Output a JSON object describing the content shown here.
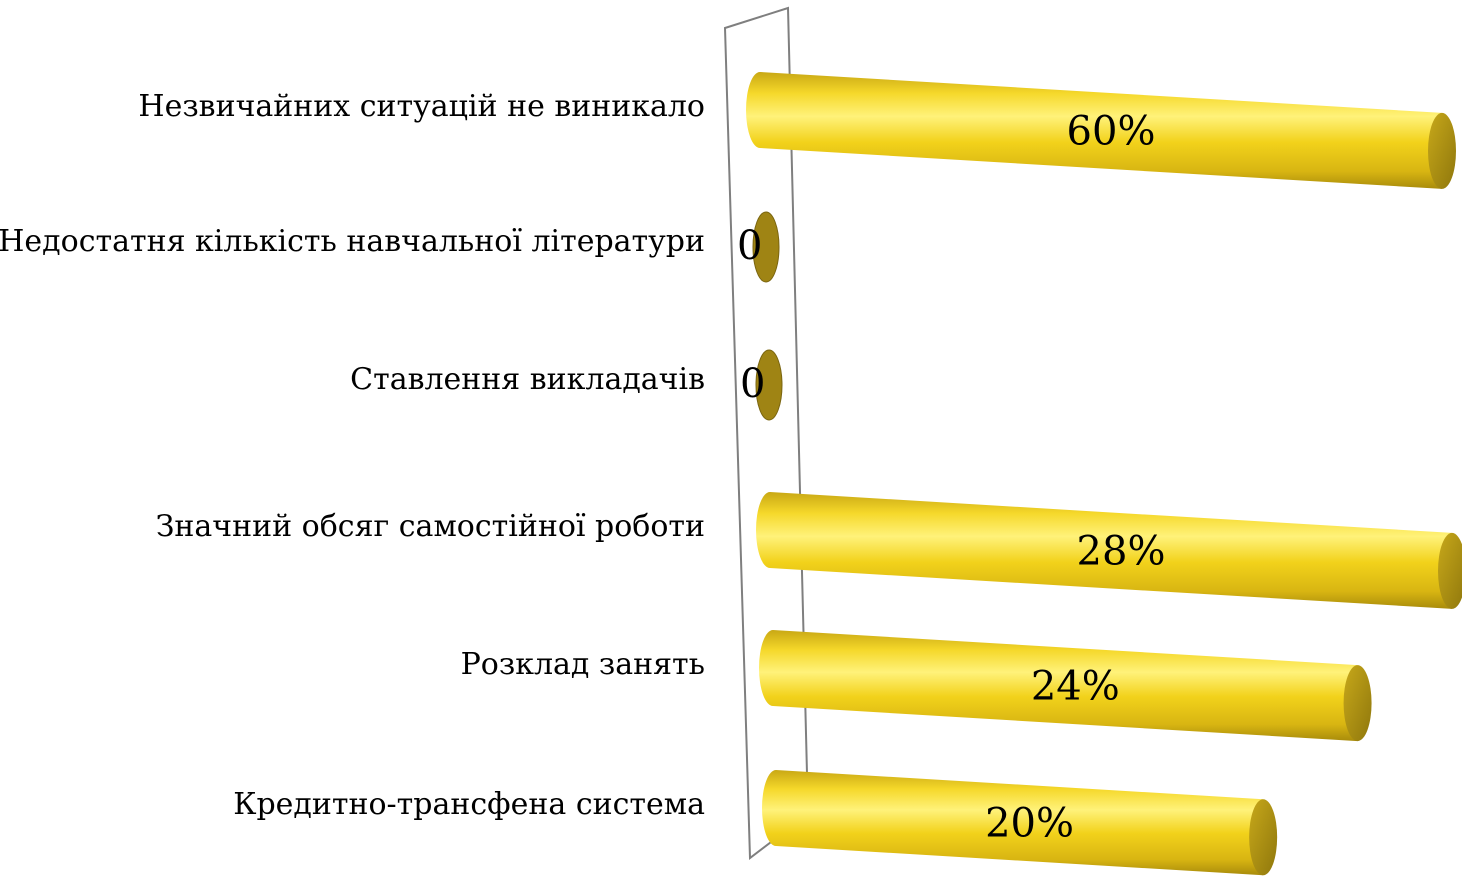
{
  "chart_data": {
    "type": "bar",
    "orientation": "horizontal",
    "style": "3d-cylinder",
    "categories": [
      "Незвичайних ситуацій не виникало",
      "Недостатня кількість навчальної літератури",
      "Ставлення викладачів",
      "Значний обсяг самостійної роботи",
      "Розклад занять",
      "Кредитно-трансфена система"
    ],
    "values": [
      60,
      0,
      0,
      28,
      24,
      20
    ],
    "data_labels": [
      "60%",
      "0",
      "0",
      "28%",
      "24%",
      "20%"
    ],
    "unit": "%",
    "title": "",
    "xlabel": "",
    "ylabel": "",
    "xlim": [
      0,
      28
    ],
    "bars_clipped_at_plot_edge": true,
    "legend": "none",
    "grid": false,
    "colors": {
      "bar_body": "#f2d21b",
      "bar_highlight": "#fff27a",
      "bar_shadow": "#b89a0a",
      "bar_end_cap": "#b39612",
      "zero_disk": "#9f8414",
      "wall_stroke": "#7f7f7f"
    }
  }
}
